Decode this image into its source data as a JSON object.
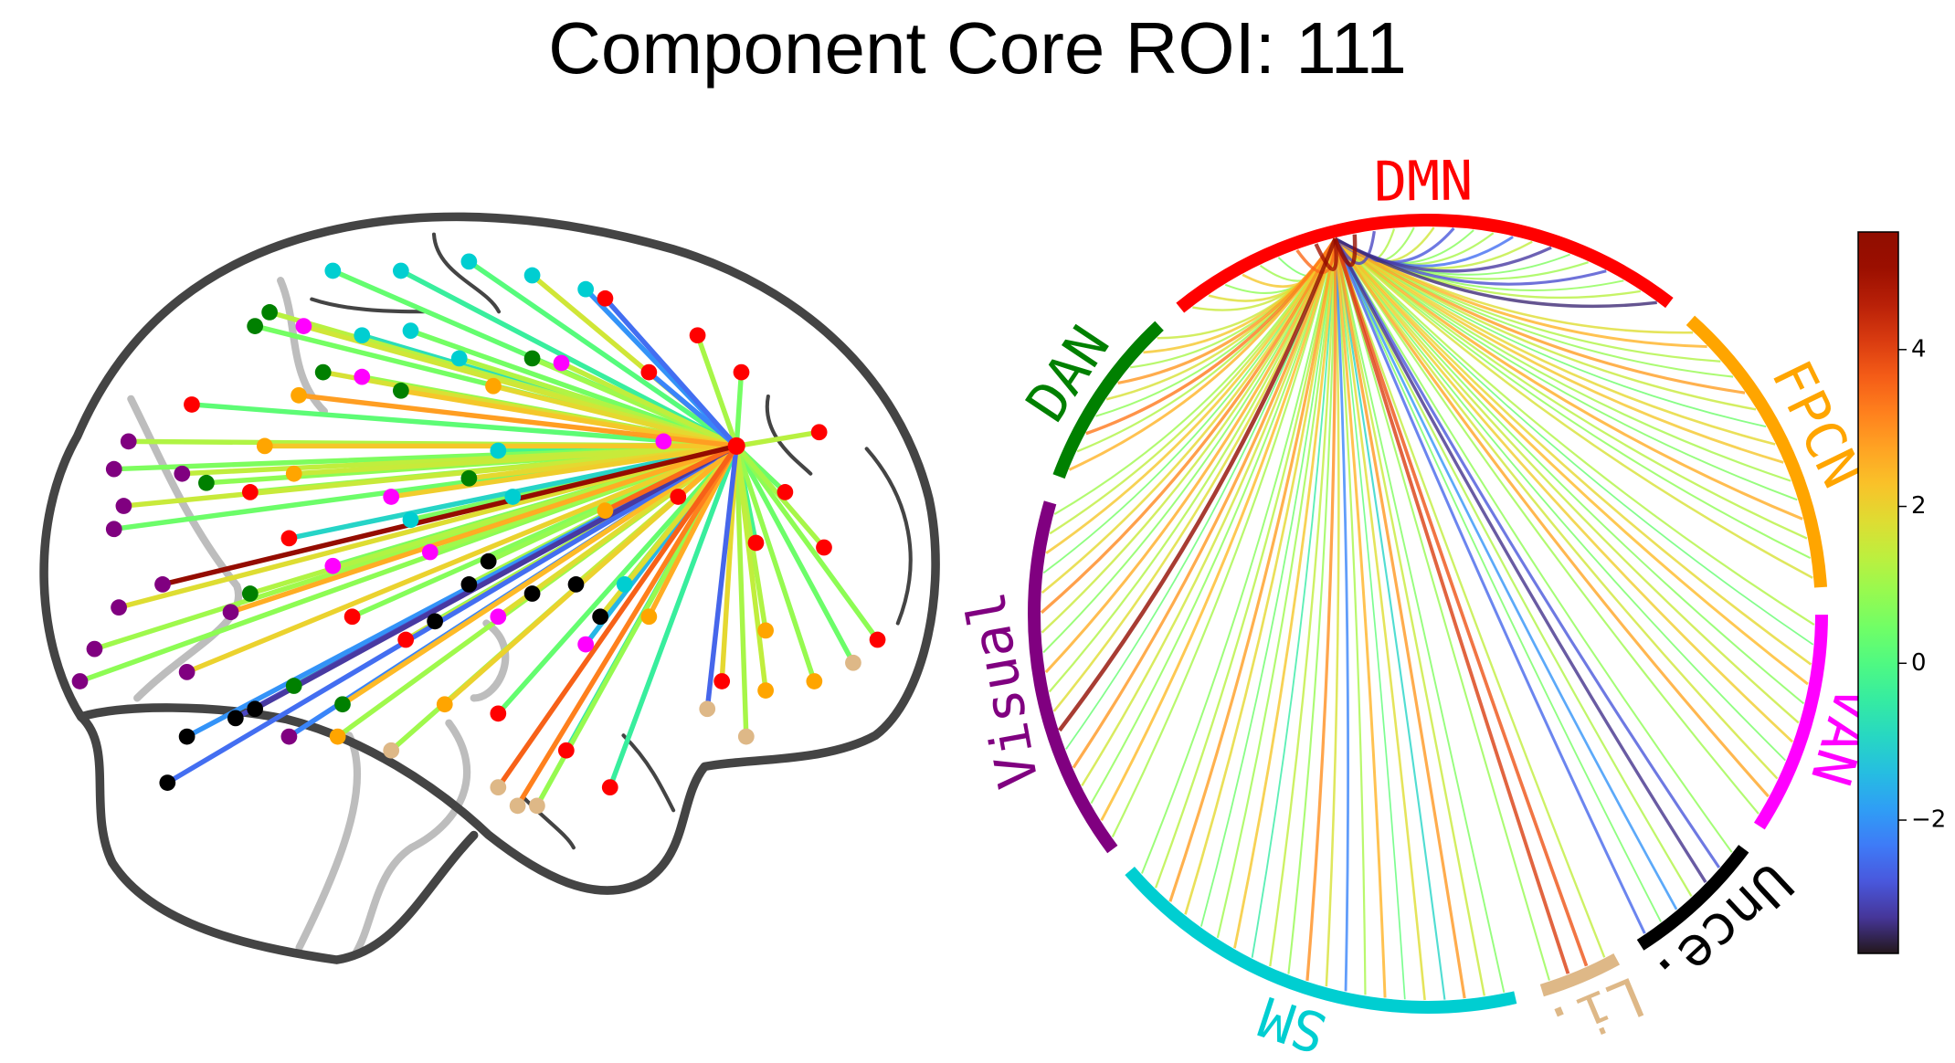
{
  "title": "Component Core ROI: 111",
  "chart_data": [
    {
      "type": "connectome",
      "source": {
        "x": 34,
        "y": 36,
        "group": 0
      },
      "nodes": {
        "x": [
          -91,
          -94,
          -92,
          -94,
          -84,
          -93,
          -98,
          -101,
          -79,
          -58,
          -80,
          -70,
          -83,
          -79,
          -69,
          -65,
          -21,
          -17,
          -8,
          1,
          6,
          -28,
          -62,
          -65,
          -51,
          -35,
          -8,
          -75,
          -21,
          -66,
          -57,
          -47,
          -55,
          -43,
          -2,
          -37,
          -29,
          -49,
          -15,
          3,
          19,
          -78,
          -66,
          -58,
          26,
          16,
          35,
          51,
          7,
          -45,
          -34,
          -15,
          -1,
          8,
          31,
          63,
          44,
          52,
          38,
          22,
          -56,
          -57,
          -63,
          -16,
          7,
          16,
          40,
          50,
          40,
          -48,
          -26,
          -49,
          -35,
          -21,
          -8,
          -43,
          -33,
          -23,
          -15,
          -12,
          3,
          -33,
          11,
          -37,
          -15,
          -11,
          -7,
          28,
          36,
          58
        ],
        "y": [
          37,
          31,
          23,
          18,
          6,
          1,
          -8,
          -15,
          -13,
          -27,
          30,
          0,
          -37,
          -27,
          -23,
          -21,
          6,
          11,
          4,
          6,
          -1,
          -2,
          65,
          62,
          52,
          48,
          55,
          28,
          29,
          4,
          -16,
          -20,
          62,
          51,
          54,
          25,
          13,
          10,
          -1,
          -7,
          37,
          45,
          26,
          16,
          60,
          52,
          52,
          39,
          68,
          -1,
          -6,
          -22,
          -30,
          -38,
          -15,
          -6,
          26,
          14,
          15,
          25,
          47,
          30,
          36,
          49,
          22,
          -1,
          -4,
          -15,
          -17,
          -27,
          -20,
          74,
          74,
          76,
          73,
          60,
          61,
          55,
          35,
          25,
          70,
          20,
          6,
          -30,
          -38,
          -42,
          -42,
          -21,
          -27,
          -11
        ],
        "group": [
          6,
          6,
          6,
          6,
          6,
          6,
          6,
          6,
          6,
          6,
          6,
          6,
          3,
          3,
          3,
          3,
          3,
          3,
          3,
          3,
          3,
          3,
          7,
          7,
          7,
          7,
          7,
          7,
          7,
          7,
          7,
          7,
          2,
          2,
          2,
          2,
          2,
          2,
          2,
          2,
          2,
          0,
          0,
          0,
          0,
          0,
          0,
          0,
          0,
          0,
          0,
          0,
          0,
          0,
          0,
          0,
          0,
          0,
          0,
          0,
          1,
          1,
          1,
          1,
          1,
          1,
          1,
          1,
          1,
          1,
          1,
          5,
          5,
          5,
          5,
          5,
          5,
          5,
          5,
          5,
          5,
          5,
          5,
          4,
          4,
          4,
          4,
          4,
          4,
          4
        ],
        "values": [
          1.2,
          0.6,
          1.5,
          0.4,
          5.2,
          1.8,
          1.0,
          0.8,
          2.0,
          -2.2,
          1.4,
          2.6,
          -2.5,
          -2.0,
          -3.0,
          -3.2,
          1.1,
          0.9,
          -0.8,
          1.5,
          1.8,
          0.7,
          1.3,
          0.5,
          1.7,
          2.2,
          1.0,
          0.8,
          1.9,
          1.2,
          -0.3,
          2.4,
          1.6,
          0.9,
          1.4,
          2.1,
          1.0,
          0.6,
          1.8,
          -1.5,
          1.2,
          0.2,
          0.9,
          -1.0,
          1.1,
          -2.2,
          0.5,
          1.3,
          -2.5,
          0.7,
          1.5,
          0.3,
          -0.6,
          -0.4,
          1.9,
          0.8,
          0.4,
          1.1,
          -0.2,
          2.5,
          2.8,
          1.5,
          2.2,
          1.9,
          3.5,
          2.6,
          1.2,
          0.9,
          1.4,
          1.0,
          2.0,
          0.3,
          -0.4,
          0.1,
          1.6,
          -0.8,
          0.5,
          1.2,
          -0.2,
          0.2,
          -2.0,
          0.6,
          0.8,
          1.0,
          3.6,
          3.2,
          0.9,
          -2.6,
          1.1,
          0.4
        ]
      }
    },
    {
      "type": "chord",
      "colormap": "turbo",
      "clim": [
        -3.7,
        5.5
      ],
      "colorbar_ticks": [
        {
          "value": -2,
          "label": "−2"
        },
        0,
        2,
        4
      ],
      "source": {
        "group": 0,
        "node": 8
      },
      "groups": [
        {
          "name": "DMN",
          "color": "#ff0000",
          "values": [
            1.5,
            1.8,
            0.8,
            2.2,
            1.0,
            0.5,
            3.5,
            4.9,
            null,
            5.2,
            -3.0,
            1.2,
            0.9,
            1.6,
            -2.8,
            0.7,
            1.1,
            -2.5,
            1.4,
            -3.2,
            0.6,
            1.0,
            -2.9,
            0.8,
            1.3,
            -3.4
          ]
        },
        {
          "name": "FPCN",
          "color": "#ffa500",
          "values": [
            1.8,
            2.5,
            1.2,
            0.9,
            2.8,
            1.5,
            0.4,
            1.9,
            2.2,
            1.1,
            0.6,
            2.6,
            1.3,
            0.8,
            1.7
          ]
        },
        {
          "name": "VAN",
          "color": "#ff00ff",
          "values": [
            1.2,
            0.3,
            1.9,
            2.4,
            0.7,
            1.5,
            2.1,
            0.5,
            1.6,
            2.7,
            1.0
          ]
        },
        {
          "name": "Unce.",
          "color": "#000000",
          "values": [
            0.8,
            -2.8,
            -3.3,
            1.2,
            -2.0,
            0.5,
            -2.6
          ]
        },
        {
          "name": "Li.",
          "color": "#deb887",
          "values": [
            1.4,
            3.8,
            4.1,
            0.9
          ]
        },
        {
          "name": "SM",
          "color": "#00ced1",
          "values": [
            0.6,
            1.5,
            2.9,
            -1.0,
            1.8,
            0.2,
            2.5,
            1.1,
            -2.2,
            1.7,
            3.0,
            0.9,
            1.4,
            -0.5,
            2.2,
            1.0,
            0.4,
            1.9,
            2.8,
            1.3,
            0.7
          ]
        },
        {
          "name": "Visual",
          "color": "#800080",
          "values": [
            1.1,
            2.4,
            0.8,
            1.6,
            2.9,
            0.3,
            5.3,
            1.8,
            1.2,
            2.6,
            0.7,
            1.5,
            3.1,
            1.9,
            0.5,
            2.2,
            1.4,
            1.0
          ]
        },
        {
          "name": "DAN",
          "color": "#008000",
          "values": [
            2.5,
            1.2,
            3.3,
            0.8,
            1.7,
            2.9,
            1.1,
            2.2,
            1.5
          ]
        }
      ]
    }
  ]
}
